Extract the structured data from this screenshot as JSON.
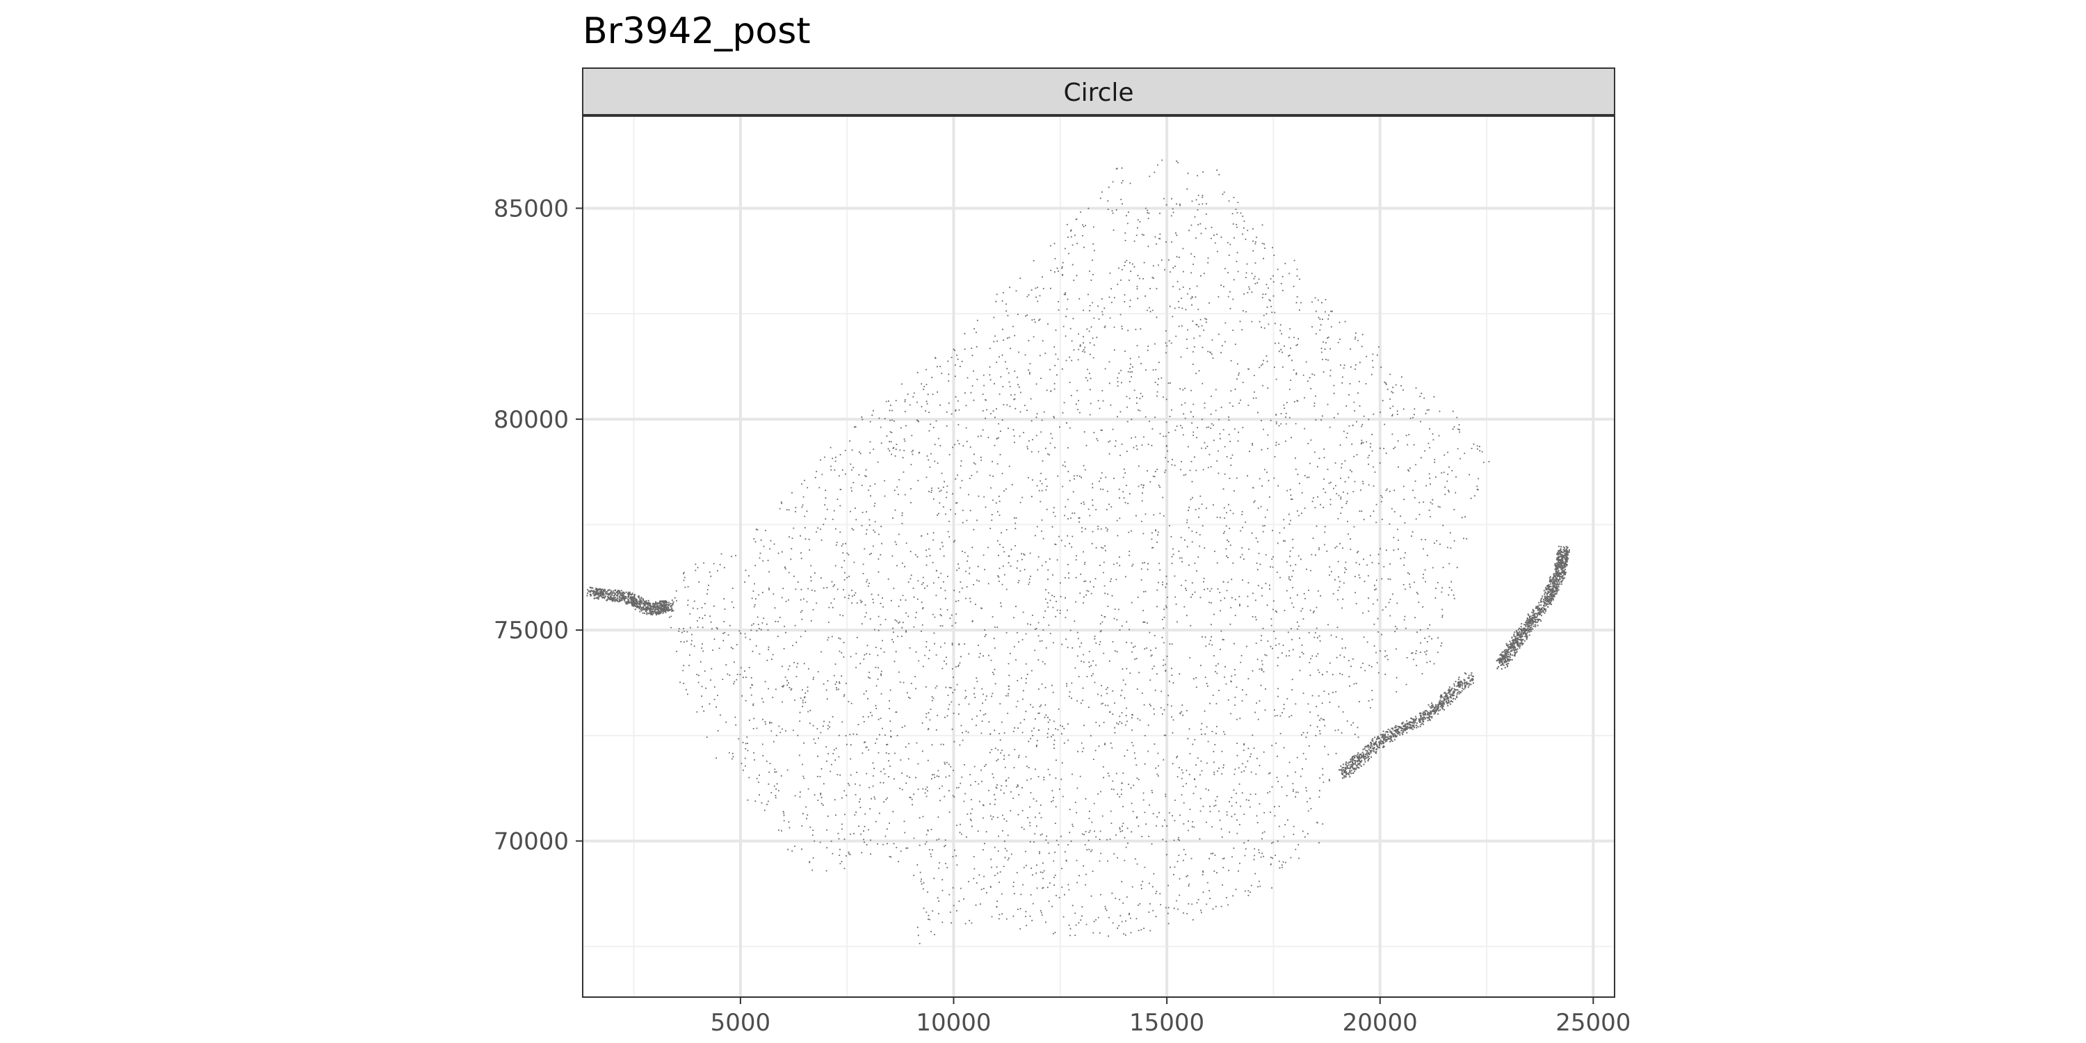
{
  "chart_data": {
    "type": "scatter",
    "title": "Br3942_post",
    "facet_label": "Circle",
    "xlabel": "",
    "ylabel": "",
    "x_ticks": [
      5000,
      10000,
      15000,
      20000,
      25000
    ],
    "y_ticks": [
      70000,
      75000,
      80000,
      85000
    ],
    "xlim": [
      1300,
      25500
    ],
    "ylim": [
      66300,
      87200
    ],
    "grid": true,
    "legend": "none",
    "point_color": "#4d4d4d",
    "description_shape": {
      "main_region_outline": [
        [
          3300,
          75700
        ],
        [
          3600,
          76400
        ],
        [
          4800,
          77100
        ],
        [
          6500,
          78600
        ],
        [
          7500,
          79900
        ],
        [
          9200,
          81200
        ],
        [
          10500,
          82600
        ],
        [
          11700,
          83700
        ],
        [
          12800,
          84900
        ],
        [
          13500,
          85500
        ],
        [
          13900,
          86200
        ],
        [
          16100,
          86200
        ],
        [
          16800,
          85000
        ],
        [
          17600,
          84400
        ],
        [
          18400,
          83300
        ],
        [
          19200,
          82500
        ],
        [
          20500,
          81200
        ],
        [
          21900,
          80100
        ],
        [
          22700,
          79000
        ],
        [
          22400,
          78300
        ],
        [
          22100,
          77300
        ],
        [
          21800,
          76300
        ],
        [
          21700,
          75500
        ],
        [
          21500,
          74600
        ],
        [
          21000,
          73800
        ],
        [
          19900,
          73200
        ],
        [
          19100,
          71800
        ],
        [
          18600,
          70000
        ],
        [
          17500,
          68900
        ],
        [
          15500,
          68100
        ],
        [
          13500,
          67600
        ],
        [
          12000,
          67800
        ],
        [
          10800,
          68100
        ],
        [
          9700,
          67900
        ],
        [
          9200,
          67400
        ],
        [
          9000,
          68500
        ],
        [
          8900,
          69500
        ],
        [
          7800,
          69400
        ],
        [
          6600,
          69200
        ],
        [
          5700,
          70300
        ],
        [
          4500,
          71800
        ],
        [
          3600,
          73500
        ],
        [
          3300,
          74700
        ]
      ],
      "tail_regions": [
        [
          [
            1500,
            75900
          ],
          [
            2300,
            75800
          ],
          [
            2900,
            75500
          ],
          [
            3300,
            75600
          ]
        ],
        [
          [
            19100,
            71600
          ],
          [
            20000,
            72400
          ],
          [
            21100,
            73000
          ],
          [
            22100,
            73900
          ]
        ],
        [
          [
            22800,
            74200
          ],
          [
            23300,
            74900
          ],
          [
            23900,
            75700
          ],
          [
            24200,
            76400
          ],
          [
            24300,
            76900
          ]
        ]
      ]
    }
  }
}
